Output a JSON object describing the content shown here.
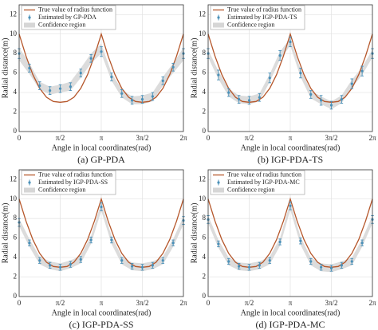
{
  "chart_data": [
    {
      "type": "line",
      "title": "(a)  GP-PDA",
      "xlabel": "Angle in local coordinates(rad)",
      "ylabel": "Radial distance(m)",
      "xlim": [
        0,
        6.2832
      ],
      "ylim": [
        0,
        13
      ],
      "xticks": [
        0,
        {
          "value": 1.5708,
          "label": "π/2"
        },
        {
          "value": 3.1416,
          "label": "π"
        },
        {
          "value": 4.7124,
          "label": "3π/2"
        },
        {
          "value": 6.2832,
          "label": "2π"
        }
      ],
      "yticks": [
        0,
        2,
        4,
        6,
        8,
        10,
        12
      ],
      "grid": true,
      "legend": "upper left",
      "series": [
        {
          "name": "True value of radius function",
          "color": "#b5562a",
          "x": [
            0,
            0.2618,
            0.5236,
            0.7854,
            1.0472,
            1.309,
            1.5708,
            1.8326,
            2.0944,
            2.3562,
            2.618,
            2.8798,
            3.1416,
            3.4034,
            3.6652,
            3.927,
            4.1888,
            4.4506,
            4.7124,
            4.9742,
            5.236,
            5.4978,
            5.7596,
            6.0214,
            6.2832
          ],
          "values": [
            10,
            7.74,
            5.84,
            4.42,
            3.51,
            3.08,
            3.0,
            3.08,
            3.51,
            4.42,
            5.84,
            7.74,
            10,
            7.74,
            5.84,
            4.42,
            3.51,
            3.08,
            3.0,
            3.08,
            3.51,
            4.42,
            5.84,
            7.74,
            10
          ]
        },
        {
          "name": "Estimated by GP-PDA",
          "color": "#4a90b8",
          "x": [
            0,
            0.3927,
            0.7854,
            1.1781,
            1.5708,
            1.9635,
            2.3562,
            2.7489,
            3.1416,
            3.5343,
            3.927,
            4.3197,
            4.7124,
            5.1051,
            5.4978,
            5.8905,
            6.2832
          ],
          "values": [
            8.0,
            6.5,
            4.7,
            4.2,
            4.4,
            4.6,
            6.0,
            7.5,
            8.2,
            5.6,
            3.9,
            3.2,
            3.3,
            3.6,
            5.2,
            6.6,
            8.0
          ],
          "errors": [
            0.5,
            0.4,
            0.4,
            0.4,
            0.4,
            0.4,
            0.4,
            0.4,
            0.5,
            0.4,
            0.4,
            0.4,
            0.4,
            0.4,
            0.4,
            0.4,
            0.5
          ]
        },
        {
          "name": "Confidence region",
          "color": "#d6d6d6",
          "x": [
            0,
            0.3927,
            0.7854,
            1.1781,
            1.5708,
            1.9635,
            2.3562,
            2.7489,
            3.1416,
            3.5343,
            3.927,
            4.3197,
            4.7124,
            5.1051,
            5.4978,
            5.8905,
            6.2832
          ],
          "lower": [
            7.3,
            5.9,
            4.3,
            3.8,
            4.0,
            4.2,
            5.5,
            7.0,
            8.0,
            5.2,
            3.5,
            2.8,
            2.8,
            3.1,
            4.7,
            6.0,
            7.3
          ],
          "upper": [
            8.6,
            7.0,
            5.1,
            4.6,
            4.8,
            5.1,
            6.5,
            8.0,
            9.0,
            6.0,
            4.3,
            3.6,
            3.7,
            4.0,
            5.6,
            7.0,
            8.6
          ]
        }
      ]
    },
    {
      "type": "line",
      "title": "(b)  IGP-PDA-TS",
      "xlabel": "Angle in local coordinates(rad)",
      "ylabel": "Radial distance(m)",
      "xlim": [
        0,
        6.2832
      ],
      "ylim": [
        0,
        13
      ],
      "xticks": [
        0,
        {
          "value": 1.5708,
          "label": "π/2"
        },
        {
          "value": 3.1416,
          "label": "π"
        },
        {
          "value": 4.7124,
          "label": "3π/2"
        },
        {
          "value": 6.2832,
          "label": "2π"
        }
      ],
      "yticks": [
        0,
        2,
        4,
        6,
        8,
        10,
        12
      ],
      "grid": true,
      "legend": "upper left",
      "series": [
        {
          "name": "True value of radius function",
          "color": "#b5562a",
          "x": [
            0,
            0.2618,
            0.5236,
            0.7854,
            1.0472,
            1.309,
            1.5708,
            1.8326,
            2.0944,
            2.3562,
            2.618,
            2.8798,
            3.1416,
            3.4034,
            3.6652,
            3.927,
            4.1888,
            4.4506,
            4.7124,
            4.9742,
            5.236,
            5.4978,
            5.7596,
            6.0214,
            6.2832
          ],
          "values": [
            10,
            7.74,
            5.84,
            4.42,
            3.51,
            3.08,
            3.0,
            3.08,
            3.51,
            4.42,
            5.84,
            7.74,
            10,
            7.74,
            5.84,
            4.42,
            3.51,
            3.08,
            3.0,
            3.08,
            3.51,
            4.42,
            5.84,
            7.74,
            10
          ]
        },
        {
          "name": "Estimated by IGP-PDA-TS",
          "color": "#4a90b8",
          "x": [
            0,
            0.3927,
            0.7854,
            1.1781,
            1.5708,
            1.9635,
            2.3562,
            2.7489,
            3.1416,
            3.5343,
            3.927,
            4.3197,
            4.7124,
            5.1051,
            5.4978,
            5.8905,
            6.2832
          ],
          "values": [
            8.0,
            5.8,
            4.0,
            3.3,
            3.2,
            3.5,
            5.5,
            7.8,
            9.2,
            6.0,
            3.8,
            3.2,
            2.7,
            3.3,
            4.9,
            6.2,
            8.0
          ],
          "errors": [
            0.5,
            0.5,
            0.4,
            0.4,
            0.4,
            0.4,
            0.5,
            0.5,
            0.5,
            0.5,
            0.4,
            0.5,
            0.4,
            0.4,
            0.5,
            0.5,
            0.5
          ]
        },
        {
          "name": "Confidence region",
          "color": "#d6d6d6",
          "x": [
            0,
            0.3927,
            0.7854,
            1.1781,
            1.5708,
            1.9635,
            2.3562,
            2.7489,
            3.1416,
            3.5343,
            3.927,
            4.3197,
            4.7124,
            5.1051,
            5.4978,
            5.8905,
            6.2832
          ],
          "lower": [
            7.6,
            5.4,
            3.6,
            2.9,
            2.8,
            3.1,
            5.1,
            7.4,
            8.8,
            5.6,
            3.4,
            2.8,
            2.3,
            2.9,
            4.5,
            5.8,
            7.6
          ],
          "upper": [
            8.4,
            6.2,
            4.4,
            3.7,
            3.6,
            3.9,
            5.9,
            8.2,
            9.6,
            6.4,
            4.2,
            3.6,
            3.1,
            3.7,
            5.3,
            6.6,
            8.4
          ]
        }
      ]
    },
    {
      "type": "line",
      "title": "(c)  IGP-PDA-SS",
      "xlabel": "Angle in local coordinates(rad)",
      "ylabel": "Radial distance(m)",
      "xlim": [
        0,
        6.2832
      ],
      "ylim": [
        0,
        13
      ],
      "xticks": [
        0,
        {
          "value": 1.5708,
          "label": "π/2"
        },
        {
          "value": 3.1416,
          "label": "π"
        },
        {
          "value": 4.7124,
          "label": "3π/2"
        },
        {
          "value": 6.2832,
          "label": "2π"
        }
      ],
      "yticks": [
        0,
        2,
        4,
        6,
        8,
        10,
        12
      ],
      "grid": true,
      "legend": "upper left",
      "series": [
        {
          "name": "True value of radius function",
          "color": "#b5562a",
          "x": [
            0,
            0.2618,
            0.5236,
            0.7854,
            1.0472,
            1.309,
            1.5708,
            1.8326,
            2.0944,
            2.3562,
            2.618,
            2.8798,
            3.1416,
            3.4034,
            3.6652,
            3.927,
            4.1888,
            4.4506,
            4.7124,
            4.9742,
            5.236,
            5.4978,
            5.7596,
            6.0214,
            6.2832
          ],
          "values": [
            10,
            7.74,
            5.84,
            4.42,
            3.51,
            3.08,
            3.0,
            3.08,
            3.51,
            4.42,
            5.84,
            7.74,
            10,
            7.74,
            5.84,
            4.42,
            3.51,
            3.08,
            3.0,
            3.08,
            3.51,
            4.42,
            5.84,
            7.74,
            10
          ]
        },
        {
          "name": "Estimated by IGP-PDA-SS",
          "color": "#4a90b8",
          "x": [
            0,
            0.3927,
            0.7854,
            1.1781,
            1.5708,
            1.9635,
            2.3562,
            2.7489,
            3.1416,
            3.5343,
            3.927,
            4.3197,
            4.7124,
            5.1051,
            5.4978,
            5.8905,
            6.2832
          ],
          "values": [
            7.6,
            5.5,
            3.7,
            3.2,
            3.0,
            3.3,
            3.8,
            5.8,
            9.2,
            5.8,
            3.7,
            3.1,
            3.0,
            3.2,
            3.7,
            5.5,
            7.8
          ],
          "errors": [
            0.4,
            0.3,
            0.3,
            0.3,
            0.3,
            0.3,
            0.3,
            0.3,
            0.4,
            0.3,
            0.3,
            0.3,
            0.3,
            0.3,
            0.3,
            0.3,
            0.4
          ]
        },
        {
          "name": "Confidence region",
          "color": "#d6d6d6",
          "x": [
            0,
            0.3927,
            0.7854,
            1.1781,
            1.5708,
            1.9635,
            2.3562,
            2.7489,
            3.1416,
            3.5343,
            3.927,
            4.3197,
            4.7124,
            5.1051,
            5.4978,
            5.8905,
            6.2832
          ],
          "lower": [
            7.2,
            5.1,
            3.3,
            2.8,
            2.6,
            2.9,
            3.4,
            5.4,
            8.8,
            5.4,
            3.3,
            2.7,
            2.6,
            2.8,
            3.3,
            5.1,
            7.4
          ],
          "upper": [
            8.0,
            5.9,
            4.1,
            3.6,
            3.4,
            3.7,
            4.2,
            6.2,
            9.6,
            6.2,
            4.1,
            3.5,
            3.4,
            3.6,
            4.1,
            5.9,
            8.2
          ]
        }
      ]
    },
    {
      "type": "line",
      "title": "(d)  IGP-PDA-MC",
      "xlabel": "Angle in local coordinates(rad)",
      "ylabel": "Radial distance(m)",
      "xlim": [
        0,
        6.2832
      ],
      "ylim": [
        0,
        13
      ],
      "xticks": [
        0,
        {
          "value": 1.5708,
          "label": "π/2"
        },
        {
          "value": 3.1416,
          "label": "π"
        },
        {
          "value": 4.7124,
          "label": "3π/2"
        },
        {
          "value": 6.2832,
          "label": "2π"
        }
      ],
      "yticks": [
        0,
        2,
        4,
        6,
        8,
        10,
        12
      ],
      "grid": true,
      "legend": "upper left",
      "series": [
        {
          "name": "True value of radius function",
          "color": "#b5562a",
          "x": [
            0,
            0.2618,
            0.5236,
            0.7854,
            1.0472,
            1.309,
            1.5708,
            1.8326,
            2.0944,
            2.3562,
            2.618,
            2.8798,
            3.1416,
            3.4034,
            3.6652,
            3.927,
            4.1888,
            4.4506,
            4.7124,
            4.9742,
            5.236,
            5.4978,
            5.7596,
            6.0214,
            6.2832
          ],
          "values": [
            10,
            7.74,
            5.84,
            4.42,
            3.51,
            3.08,
            3.0,
            3.08,
            3.51,
            4.42,
            5.84,
            7.74,
            10,
            7.74,
            5.84,
            4.42,
            3.51,
            3.08,
            3.0,
            3.08,
            3.51,
            4.42,
            5.84,
            7.74,
            10
          ]
        },
        {
          "name": "Estimated by IGP-PDA-MC",
          "color": "#4a90b8",
          "x": [
            0,
            0.3927,
            0.7854,
            1.1781,
            1.5708,
            1.9635,
            2.3562,
            2.7489,
            3.1416,
            3.5343,
            3.927,
            4.3197,
            4.7124,
            5.1051,
            5.4978,
            5.8905,
            6.2832
          ],
          "values": [
            7.9,
            5.4,
            3.6,
            3.1,
            3.0,
            3.2,
            3.7,
            5.6,
            9.3,
            5.7,
            3.6,
            3.0,
            2.9,
            3.2,
            3.6,
            5.5,
            7.9
          ],
          "errors": [
            0.4,
            0.3,
            0.3,
            0.3,
            0.3,
            0.3,
            0.3,
            0.3,
            0.4,
            0.3,
            0.3,
            0.3,
            0.3,
            0.3,
            0.3,
            0.3,
            0.4
          ]
        },
        {
          "name": "Confidence region",
          "color": "#d6d6d6",
          "x": [
            0,
            0.3927,
            0.7854,
            1.1781,
            1.5708,
            1.9635,
            2.3562,
            2.7489,
            3.1416,
            3.5343,
            3.927,
            4.3197,
            4.7124,
            5.1051,
            5.4978,
            5.8905,
            6.2832
          ],
          "lower": [
            7.5,
            5.0,
            3.2,
            2.7,
            2.6,
            2.8,
            3.3,
            5.2,
            8.9,
            5.3,
            3.2,
            2.6,
            2.5,
            2.8,
            3.2,
            5.1,
            7.5
          ],
          "upper": [
            8.3,
            5.8,
            4.0,
            3.5,
            3.4,
            3.6,
            4.1,
            6.0,
            9.7,
            6.1,
            4.0,
            3.4,
            3.3,
            3.6,
            4.0,
            5.9,
            8.3
          ]
        }
      ]
    }
  ]
}
